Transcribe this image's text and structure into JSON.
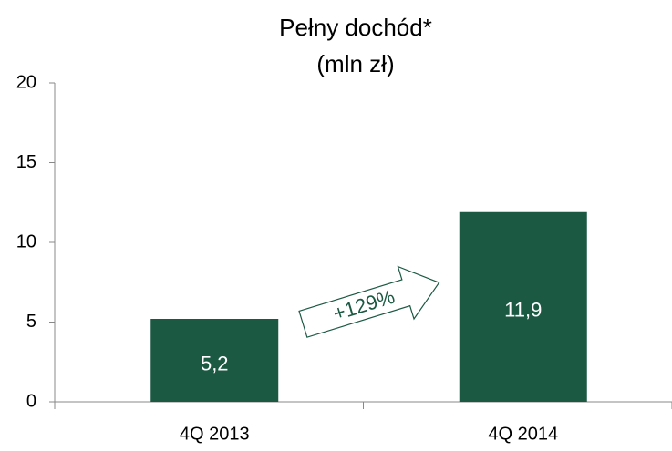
{
  "chart_data": {
    "type": "bar",
    "title": "Pełny dochód*",
    "subtitle": "(mln zł)",
    "categories": [
      "4Q 2013",
      "4Q 2014"
    ],
    "values": [
      5.2,
      11.9
    ],
    "value_labels": [
      "5,2",
      "11,9"
    ],
    "color": "#1b5943",
    "annotation": "+129%",
    "ylim": [
      0,
      20
    ],
    "yticks": [
      0,
      5,
      10,
      15,
      20
    ],
    "grid": false
  }
}
